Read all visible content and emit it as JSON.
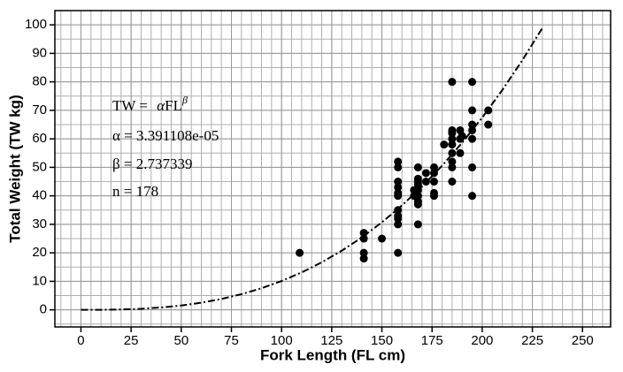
{
  "chart_data": {
    "type": "scatter",
    "xlabel": "Fork Length (FL cm)",
    "ylabel": "Total Weight (TW kg)",
    "xlim": [
      -13,
      264
    ],
    "ylim": [
      -6,
      105
    ],
    "xticks": [
      0,
      25,
      50,
      75,
      100,
      125,
      150,
      175,
      200,
      225,
      250
    ],
    "yticks": [
      0,
      10,
      20,
      30,
      40,
      50,
      60,
      70,
      80,
      90,
      100
    ],
    "grid": true,
    "grid_step": {
      "x": 5,
      "y": 5
    },
    "annotations": {
      "formula": {
        "lhs": "TW = ",
        "coef": "α",
        "base": "FL",
        "exp": "β"
      },
      "lines": [
        "α = 3.391108e-05",
        "β = 2.737339",
        "n = 178"
      ]
    },
    "series": [
      {
        "type": "scatter",
        "color": "#000000",
        "x": [
          109,
          141,
          141,
          141,
          141,
          150,
          158,
          158,
          158,
          158,
          158,
          158,
          158,
          158,
          158,
          158,
          158,
          168,
          168,
          168,
          168,
          168,
          168,
          168,
          168,
          168,
          166,
          166,
          172,
          172,
          176,
          176,
          176,
          176,
          176,
          181,
          185,
          185,
          185,
          185,
          185,
          185,
          185,
          185,
          185,
          189,
          189,
          189,
          190,
          195,
          195,
          195,
          195,
          195,
          195,
          195,
          203,
          203
        ],
        "values": [
          20,
          27,
          25,
          20,
          18,
          25,
          52,
          50,
          45,
          43,
          41,
          40,
          35,
          33,
          32,
          30,
          20,
          50,
          46,
          45,
          44,
          42,
          40,
          38,
          37,
          30,
          40,
          42,
          48,
          45,
          50,
          48,
          45,
          41,
          40,
          58,
          80,
          63,
          62,
          60,
          58,
          55,
          52,
          50,
          45,
          63,
          60,
          55,
          61,
          80,
          70,
          65,
          63,
          60,
          50,
          40,
          70,
          65
        ]
      },
      {
        "type": "line",
        "color": "#000000",
        "x": [
          0,
          10,
          20,
          30,
          40,
          50,
          60,
          70,
          80,
          90,
          100,
          110,
          120,
          130,
          140,
          150,
          160,
          170,
          180,
          190,
          200,
          210,
          220,
          230
        ],
        "values": [
          0,
          0.01853,
          0.1235,
          0.3747,
          0.8237,
          1.517,
          2.499,
          3.811,
          5.492,
          7.582,
          10.117,
          13.133,
          16.665,
          20.746,
          25.41,
          30.7,
          36.64,
          43.25,
          50.57,
          58.63,
          67.46,
          77.1,
          87.57,
          98.91
        ]
      }
    ]
  }
}
